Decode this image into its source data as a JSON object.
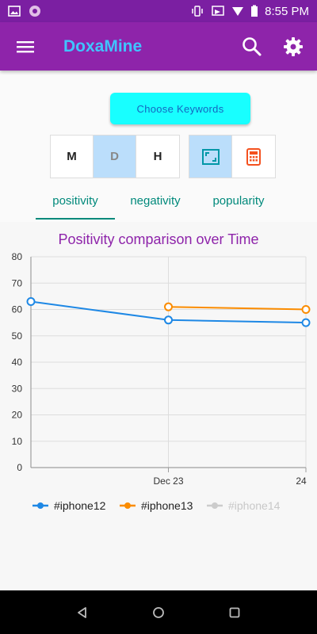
{
  "status_bar": {
    "time": "8:55 PM",
    "icons": [
      "image-icon",
      "notification-dot-icon",
      "vibrate-icon",
      "cast-icon",
      "wifi-icon",
      "battery-icon"
    ]
  },
  "app_bar": {
    "title": "DoxaMine",
    "icons": [
      "menu-icon",
      "search-icon",
      "gear-icon"
    ],
    "colors": {
      "bar": "#8e24aa",
      "status": "#7b1fa2",
      "title": "#40c4ff"
    }
  },
  "choose_button": {
    "label": "Choose  Keywords"
  },
  "granularity": {
    "options": [
      "M",
      "D",
      "H"
    ],
    "selected": "D"
  },
  "view_toggle": {
    "icons": [
      "fullscreen-icon",
      "calculator-icon"
    ],
    "selected": "fullscreen-icon"
  },
  "tabs": {
    "items": [
      "positivity",
      "negativity",
      "popularity"
    ],
    "selected": "positivity"
  },
  "chart_data": {
    "type": "line",
    "title": "Positivity comparison over Time",
    "x_ticks": [
      "Dec 23",
      "24"
    ],
    "y_ticks": [
      "0",
      "10",
      "20",
      "30",
      "40",
      "50",
      "60",
      "70",
      "80"
    ],
    "ylim": [
      0,
      80
    ],
    "xlim": [
      0,
      2
    ],
    "grid": true,
    "legend_position": "bottom",
    "series": [
      {
        "name": "#iphone12",
        "color": "#1e88e5",
        "enabled": true,
        "points": [
          [
            0,
            63
          ],
          [
            1,
            56
          ],
          [
            2,
            55
          ]
        ]
      },
      {
        "name": "#iphone13",
        "color": "#fb8c00",
        "enabled": true,
        "points": [
          [
            1,
            61
          ],
          [
            2,
            60
          ]
        ]
      },
      {
        "name": "#iphone14",
        "color": "#cccccc",
        "enabled": false,
        "points": []
      }
    ]
  },
  "nav_bar": {
    "icons": [
      "back-icon",
      "home-icon",
      "recents-icon"
    ]
  }
}
